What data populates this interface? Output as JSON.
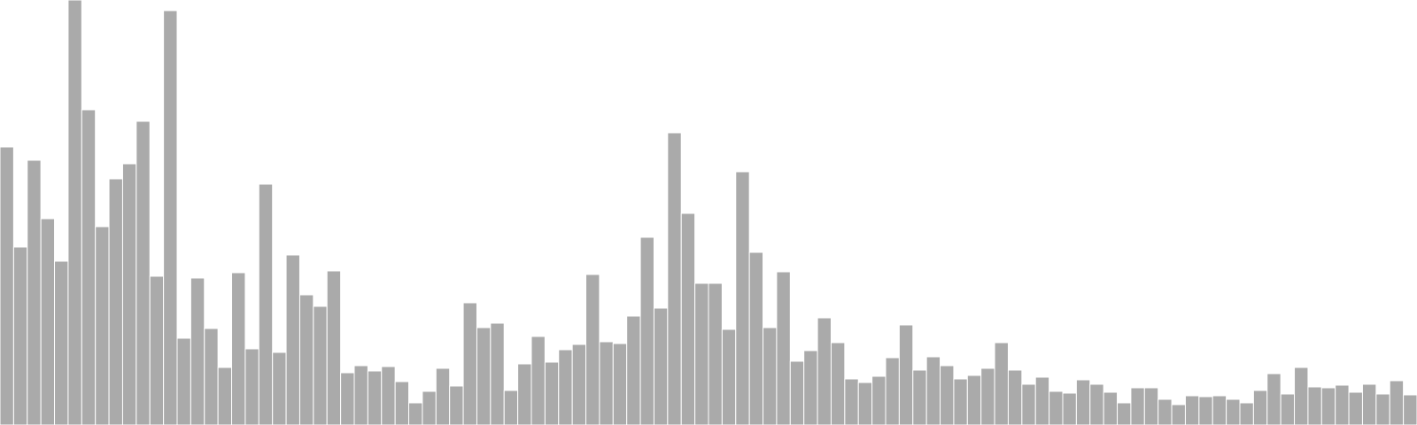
{
  "chart_data": {
    "type": "bar",
    "title": "",
    "xlabel": "",
    "ylabel": "",
    "ylim": [
      0,
      480
    ],
    "grid": false,
    "legend": "none",
    "bar_color": "#aaaaaa",
    "bar_edge_color": "#ffffff",
    "values": [
      314,
      201,
      299,
      233,
      185,
      480,
      356,
      224,
      278,
      295,
      343,
      168,
      468,
      98,
      166,
      109,
      65,
      172,
      86,
      272,
      82,
      192,
      147,
      134,
      174,
      59,
      67,
      61,
      66,
      49,
      25,
      38,
      64,
      44,
      138,
      110,
      115,
      39,
      69,
      100,
      71,
      85,
      91,
      170,
      94,
      92,
      123,
      212,
      132,
      330,
      239,
      160,
      160,
      108,
      286,
      195,
      110,
      173,
      72,
      84,
      121,
      93,
      52,
      48,
      55,
      76,
      113,
      62,
      77,
      67,
      52,
      56,
      64,
      93,
      62,
      46,
      54,
      38,
      36,
      51,
      46,
      37,
      25,
      42,
      42,
      29,
      23,
      33,
      32,
      33,
      29,
      25,
      39,
      58,
      35,
      65,
      43,
      42,
      45,
      37,
      46,
      35,
      50,
      34
    ]
  }
}
